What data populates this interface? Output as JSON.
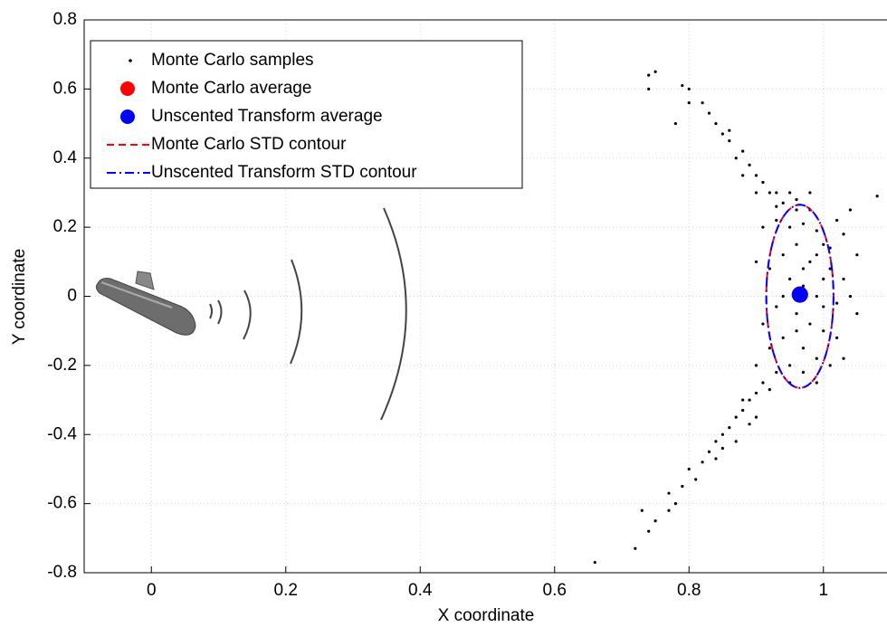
{
  "chart_data": {
    "type": "scatter",
    "xlabel": "X coordinate",
    "ylabel": "Y coordinate",
    "xlim": [
      -0.1,
      1.1
    ],
    "ylim": [
      -0.8,
      0.8
    ],
    "xticks": [
      0,
      0.2,
      0.4,
      0.6,
      0.8,
      1
    ],
    "yticks": [
      -0.8,
      -0.6,
      -0.4,
      -0.2,
      0,
      0.2,
      0.4,
      0.6,
      0.8
    ],
    "grid": true,
    "legend": "upper left",
    "series": [
      {
        "name": "Monte Carlo samples",
        "color": "#000000",
        "marker": "dot",
        "x": [
          0.75,
          0.74,
          0.74,
          0.79,
          0.8,
          0.8,
          0.78,
          0.82,
          0.84,
          0.85,
          0.86,
          0.87,
          0.88,
          0.89,
          0.9,
          0.91,
          0.92,
          0.93,
          0.9,
          0.88,
          0.95,
          0.93,
          0.83,
          0.86,
          0.66,
          0.72,
          0.74,
          0.75,
          0.78,
          0.77,
          0.79,
          0.8,
          0.82,
          0.81,
          0.83,
          0.84,
          0.85,
          0.86,
          0.87,
          0.88,
          0.89,
          0.9,
          0.87,
          0.84,
          0.9,
          0.88,
          0.91,
          0.73,
          0.77,
          0.85,
          0.89,
          0.93,
          0.95,
          0.97,
          0.99,
          1.0,
          0.96,
          0.94,
          0.98,
          1.01,
          1.03,
          0.92,
          0.95,
          0.97,
          0.99,
          1.02,
          1.04,
          0.93,
          0.96,
          0.98,
          1.0,
          1.02,
          0.94,
          0.97,
          0.99,
          0.95,
          0.93,
          0.97,
          1.01,
          0.92,
          0.96,
          0.98,
          1.03,
          1.05,
          1.02,
          0.9,
          0.91,
          1.0,
          0.94,
          1.05,
          1.03,
          0.98,
          0.96,
          0.94,
          0.91,
          0.9,
          0.92,
          0.95,
          0.99,
          1.04,
          1.08,
          0.97,
          1.0,
          0.96,
          0.99,
          1.01
        ],
        "y": [
          0.65,
          0.64,
          0.6,
          0.61,
          0.6,
          0.56,
          0.5,
          0.56,
          0.5,
          0.47,
          0.45,
          0.4,
          0.42,
          0.38,
          0.35,
          0.33,
          0.3,
          0.3,
          0.3,
          0.35,
          0.3,
          0.26,
          0.53,
          0.48,
          -0.77,
          -0.73,
          -0.68,
          -0.65,
          -0.6,
          -0.57,
          -0.55,
          -0.5,
          -0.48,
          -0.53,
          -0.45,
          -0.42,
          -0.4,
          -0.38,
          -0.35,
          -0.33,
          -0.3,
          -0.28,
          -0.42,
          -0.47,
          -0.35,
          -0.3,
          -0.25,
          -0.62,
          -0.62,
          -0.44,
          -0.37,
          0.22,
          0.2,
          0.21,
          0.19,
          0.15,
          0.15,
          0.12,
          0.1,
          0.08,
          0.05,
          0.08,
          0.05,
          0.03,
          0.0,
          -0.02,
          0.0,
          -0.03,
          -0.05,
          -0.08,
          -0.1,
          -0.12,
          -0.12,
          -0.15,
          -0.18,
          -0.2,
          -0.22,
          -0.22,
          -0.2,
          -0.15,
          0.25,
          0.25,
          0.18,
          0.12,
          0.22,
          0.1,
          -0.08,
          0.05,
          0.0,
          -0.05,
          -0.18,
          0.3,
          0.28,
          0.27,
          0.2,
          -0.2,
          -0.27,
          -0.25,
          -0.25,
          0.25,
          0.29,
          0.08,
          -0.03,
          -0.1,
          0.12,
          0.14
        ]
      },
      {
        "name": "Monte Carlo average",
        "color": "#ff0000",
        "marker": "circle",
        "x": [
          0.965
        ],
        "y": [
          0.005
        ]
      },
      {
        "name": "Unscented Transform average",
        "color": "#0000ff",
        "marker": "circle",
        "x": [
          0.965
        ],
        "y": [
          0.005
        ]
      },
      {
        "name": "Monte Carlo STD contour",
        "color": "#ff0000",
        "marker": "dashed",
        "center": [
          0.965,
          0.0
        ],
        "radii": [
          0.05,
          0.265
        ]
      },
      {
        "name": "Unscented Transform STD contour",
        "color": "#0000ff",
        "marker": "dashdot",
        "center": [
          0.965,
          0.0
        ],
        "radii": [
          0.05,
          0.265
        ]
      }
    ]
  }
}
